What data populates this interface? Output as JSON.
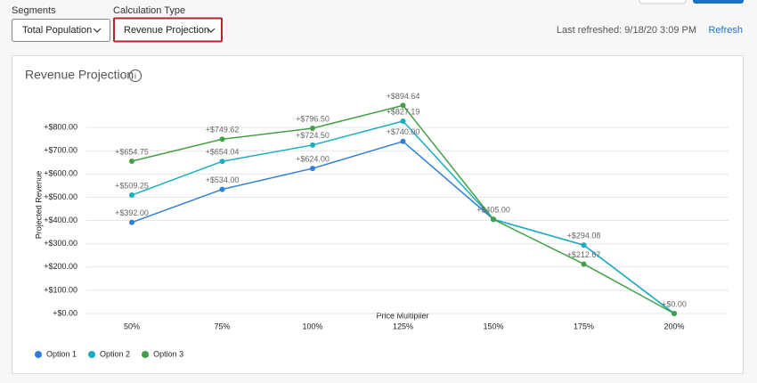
{
  "toolbar": {
    "segments_label": "Segments",
    "segments_value": "Total Population",
    "calc_label": "Calculation Type",
    "calc_value": "Revenue Projection",
    "last_refreshed": "Last refreshed: 9/18/20 3:09 PM",
    "refresh": "Refresh"
  },
  "chart_data": {
    "type": "line",
    "title": "Revenue Projection",
    "x_label": "Price Multiplier",
    "y_label": "Projected Revenue",
    "categories": [
      "50%",
      "75%",
      "100%",
      "125%",
      "150%",
      "175%",
      "200%"
    ],
    "series": [
      {
        "name": "Option 1",
        "color": "#2f7fd6",
        "values": [
          392,
          534,
          624,
          740,
          405,
          294.08,
          0
        ],
        "value_labels": [
          "+$392.00",
          "+$534.00",
          "+$624.00",
          "+$740.00",
          "+$405.00",
          null,
          "+$0.00"
        ]
      },
      {
        "name": "Option 2",
        "color": "#19adc2",
        "values": [
          509.25,
          654.04,
          724.5,
          827.19,
          405,
          294.08,
          0
        ],
        "value_labels": [
          "+$509.25",
          "+$654.04",
          "+$724.50",
          "+$827.19",
          null,
          "+$294.08",
          null
        ]
      },
      {
        "name": "Option 3",
        "color": "#43a047",
        "values": [
          654.75,
          749.62,
          796.5,
          894.64,
          405,
          212.67,
          0
        ],
        "value_labels": [
          "+$654.75",
          "+$749.62",
          "+$796.50",
          "+$894.64",
          null,
          "+$212.67",
          null
        ]
      }
    ],
    "ylim": [
      0,
      900
    ],
    "yticks": [
      {
        "value": 0,
        "label": "+$0.00"
      },
      {
        "value": 100,
        "label": "+$100.00"
      },
      {
        "value": 200,
        "label": "+$200.00"
      },
      {
        "value": 300,
        "label": "+$300.00"
      },
      {
        "value": 400,
        "label": "+$400.00"
      },
      {
        "value": 500,
        "label": "+$500.00"
      },
      {
        "value": 600,
        "label": "+$600.00"
      },
      {
        "value": 700,
        "label": "+$700.00"
      },
      {
        "value": 800,
        "label": "+$800.00"
      }
    ],
    "grid": true,
    "legend": "bottom-left"
  }
}
